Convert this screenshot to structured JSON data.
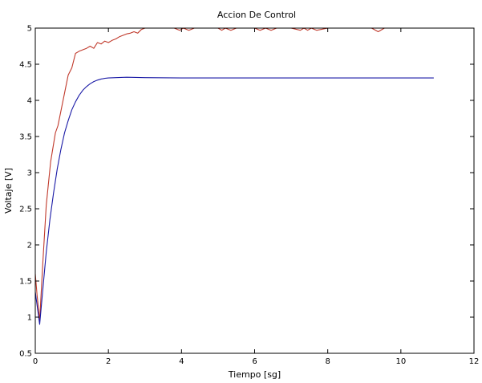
{
  "chart_data": {
    "type": "line",
    "title": "Accion De Control",
    "xlabel": "Tiempo [sg]",
    "ylabel": "Voltaje [V]",
    "xlim": [
      0,
      12
    ],
    "ylim": [
      0.5,
      5
    ],
    "xticks": [
      0,
      2,
      4,
      6,
      8,
      10,
      12
    ],
    "yticks": [
      0.5,
      1,
      1.5,
      2,
      2.5,
      3,
      3.5,
      4,
      4.5,
      5
    ],
    "grid": false,
    "series": [
      {
        "color": "#c0392b",
        "x": [
          0,
          0.05,
          0.12,
          0.2,
          0.3,
          0.42,
          0.55,
          0.62,
          0.7,
          0.8,
          0.9,
          1.0,
          1.1,
          1.2,
          1.3,
          1.4,
          1.5,
          1.6,
          1.7,
          1.8,
          1.9,
          2.0,
          2.1,
          2.2,
          2.3,
          2.4,
          2.5,
          2.6,
          2.7,
          2.8,
          2.9,
          3.0,
          3.1,
          3.2,
          3.5,
          3.8,
          3.95,
          4.05,
          4.2,
          4.35,
          4.5,
          5.0,
          5.1,
          5.2,
          5.35,
          5.5,
          6.0,
          6.15,
          6.3,
          6.45,
          6.6,
          7.0,
          7.25,
          7.35,
          7.45,
          7.55,
          7.7,
          8.0,
          9.2,
          9.38,
          9.55,
          10.0,
          10.9
        ],
        "y": [
          1.6,
          1.3,
          0.95,
          1.7,
          2.55,
          3.15,
          3.55,
          3.65,
          3.85,
          4.1,
          4.35,
          4.45,
          4.65,
          4.68,
          4.7,
          4.72,
          4.75,
          4.72,
          4.8,
          4.78,
          4.82,
          4.8,
          4.83,
          4.85,
          4.88,
          4.9,
          4.92,
          4.93,
          4.95,
          4.93,
          4.98,
          5.0,
          5.0,
          5.0,
          5.0,
          5.0,
          4.97,
          5.0,
          4.97,
          5.0,
          5.0,
          5.0,
          4.97,
          5.0,
          4.97,
          5.0,
          5.0,
          4.97,
          5.0,
          4.97,
          5.0,
          5.0,
          4.97,
          5.0,
          4.97,
          5.0,
          4.97,
          5.0,
          5.0,
          4.95,
          5.0,
          5.0,
          5.0
        ]
      },
      {
        "color": "#1a1aa6",
        "x": [
          0,
          0.12,
          0.2,
          0.3,
          0.4,
          0.5,
          0.6,
          0.7,
          0.8,
          0.9,
          1.0,
          1.1,
          1.2,
          1.3,
          1.4,
          1.5,
          1.6,
          1.7,
          1.8,
          1.9,
          2.0,
          2.2,
          2.5,
          3.0,
          4.0,
          6.0,
          8.0,
          10.0,
          10.9
        ],
        "y": [
          1.35,
          0.9,
          1.35,
          1.9,
          2.35,
          2.72,
          3.05,
          3.32,
          3.55,
          3.72,
          3.87,
          3.98,
          4.07,
          4.14,
          4.19,
          4.23,
          4.26,
          4.28,
          4.295,
          4.305,
          4.31,
          4.315,
          4.32,
          4.315,
          4.31,
          4.31,
          4.31,
          4.31,
          4.31
        ]
      }
    ]
  }
}
